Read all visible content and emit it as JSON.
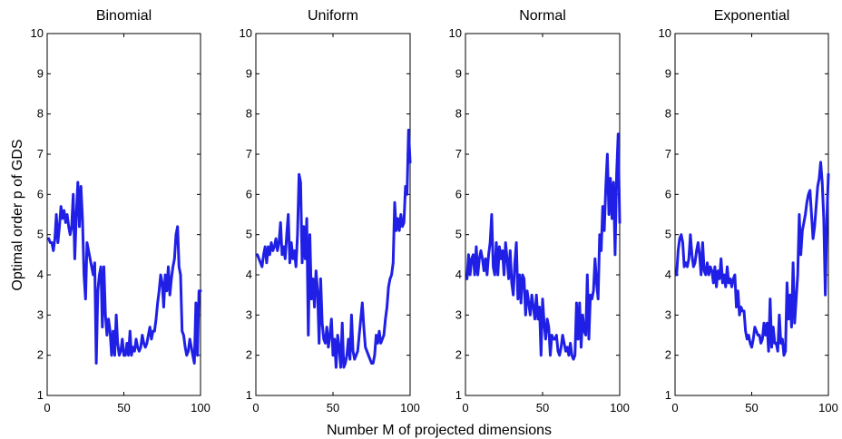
{
  "chart_data": {
    "type": "line",
    "xlabel": "Number M of projected dimensions",
    "ylabel": "Optimal order p of GDS",
    "xlim": [
      0,
      100
    ],
    "ylim": [
      1,
      10
    ],
    "x_ticks": [
      0,
      50,
      100
    ],
    "y_ticks": [
      1,
      2,
      3,
      4,
      5,
      6,
      7,
      8,
      9,
      10
    ],
    "line_color": "#1f1fe6",
    "grid": false,
    "panels": [
      {
        "title": "Binomial",
        "x": [
          1,
          2,
          3,
          4,
          5,
          6,
          7,
          8,
          9,
          10,
          11,
          12,
          13,
          14,
          15,
          16,
          17,
          18,
          19,
          20,
          21,
          22,
          23,
          24,
          25,
          26,
          27,
          28,
          29,
          30,
          31,
          32,
          33,
          34,
          35,
          36,
          37,
          38,
          39,
          40,
          41,
          42,
          43,
          44,
          45,
          46,
          47,
          48,
          49,
          50,
          51,
          52,
          53,
          54,
          55,
          56,
          57,
          58,
          59,
          60,
          61,
          62,
          63,
          64,
          65,
          66,
          67,
          68,
          69,
          70,
          71,
          72,
          73,
          74,
          75,
          76,
          77,
          78,
          79,
          80,
          81,
          82,
          83,
          84,
          85,
          86,
          87,
          88,
          89,
          90,
          91,
          92,
          93,
          94,
          95,
          96,
          97,
          98,
          99,
          100
        ],
        "values": [
          4.9,
          4.8,
          4.8,
          4.6,
          4.9,
          5.5,
          4.8,
          5.2,
          5.7,
          5.4,
          5.6,
          5.3,
          5.5,
          5.2,
          5.0,
          5.2,
          6.0,
          4.4,
          5.5,
          6.3,
          5.2,
          6.2,
          5.4,
          4.0,
          3.4,
          4.8,
          4.6,
          4.4,
          4.2,
          4.0,
          4.3,
          1.8,
          3.6,
          4.0,
          4.2,
          2.7,
          4.2,
          3.0,
          2.5,
          2.9,
          2.6,
          2.0,
          2.6,
          2.0,
          3.0,
          2.3,
          2.0,
          2.1,
          2.4,
          2.0,
          2.0,
          2.3,
          2.0,
          2.6,
          2.0,
          2.2,
          2.1,
          2.4,
          2.2,
          2.1,
          2.2,
          2.5,
          2.3,
          2.2,
          2.3,
          2.5,
          2.7,
          2.4,
          2.6,
          2.6,
          2.9,
          3.3,
          3.6,
          4.0,
          3.8,
          3.2,
          4.0,
          3.6,
          4.2,
          3.5,
          3.9,
          4.2,
          4.4,
          5.0,
          5.2,
          4.2,
          4.0,
          2.6,
          2.5,
          2.2,
          2.0,
          2.1,
          2.4,
          2.2,
          2.0,
          1.8,
          3.3,
          2.0,
          3.6,
          3.6
        ]
      },
      {
        "title": "Uniform",
        "x": [
          1,
          2,
          3,
          4,
          5,
          6,
          7,
          8,
          9,
          10,
          11,
          12,
          13,
          14,
          15,
          16,
          17,
          18,
          19,
          20,
          21,
          22,
          23,
          24,
          25,
          26,
          27,
          28,
          29,
          30,
          31,
          32,
          33,
          34,
          35,
          36,
          37,
          38,
          39,
          40,
          41,
          42,
          43,
          44,
          45,
          46,
          47,
          48,
          49,
          50,
          51,
          52,
          53,
          54,
          55,
          56,
          57,
          58,
          59,
          60,
          61,
          62,
          63,
          64,
          65,
          66,
          67,
          68,
          69,
          70,
          71,
          72,
          73,
          74,
          75,
          76,
          77,
          78,
          79,
          80,
          81,
          82,
          83,
          84,
          85,
          86,
          87,
          88,
          89,
          90,
          91,
          92,
          93,
          94,
          95,
          96,
          97,
          98,
          99,
          100
        ],
        "values": [
          4.5,
          4.4,
          4.3,
          4.2,
          4.5,
          4.7,
          4.3,
          4.7,
          4.5,
          4.8,
          4.6,
          4.7,
          4.9,
          4.6,
          4.8,
          5.3,
          4.5,
          4.7,
          4.4,
          5.0,
          5.5,
          4.3,
          4.8,
          4.4,
          4.6,
          4.2,
          5.0,
          6.5,
          6.3,
          4.3,
          5.2,
          4.4,
          5.4,
          2.5,
          5.0,
          3.4,
          3.9,
          3.2,
          4.1,
          3.6,
          2.3,
          3.9,
          2.8,
          2.4,
          2.3,
          2.7,
          2.2,
          2.5,
          2.9,
          2.0,
          2.4,
          1.7,
          2.5,
          2.2,
          1.7,
          2.8,
          1.7,
          1.8,
          2.0,
          2.4,
          1.9,
          3.0,
          2.1,
          1.9,
          2.0,
          2.1,
          2.5,
          2.9,
          3.3,
          2.7,
          2.2,
          2.1,
          2.0,
          1.9,
          1.8,
          1.8,
          2.0,
          2.5,
          2.3,
          2.6,
          2.3,
          2.4,
          2.5,
          2.9,
          3.2,
          3.7,
          3.9,
          4.0,
          4.3,
          5.8,
          5.1,
          5.4,
          5.1,
          5.5,
          5.2,
          5.3,
          6.2,
          6.0,
          7.6,
          6.8
        ]
      },
      {
        "title": "Normal",
        "x": [
          1,
          2,
          3,
          4,
          5,
          6,
          7,
          8,
          9,
          10,
          11,
          12,
          13,
          14,
          15,
          16,
          17,
          18,
          19,
          20,
          21,
          22,
          23,
          24,
          25,
          26,
          27,
          28,
          29,
          30,
          31,
          32,
          33,
          34,
          35,
          36,
          37,
          38,
          39,
          40,
          41,
          42,
          43,
          44,
          45,
          46,
          47,
          48,
          49,
          50,
          51,
          52,
          53,
          54,
          55,
          56,
          57,
          58,
          59,
          60,
          61,
          62,
          63,
          64,
          65,
          66,
          67,
          68,
          69,
          70,
          71,
          72,
          73,
          74,
          75,
          76,
          77,
          78,
          79,
          80,
          81,
          82,
          83,
          84,
          85,
          86,
          87,
          88,
          89,
          90,
          91,
          92,
          93,
          94,
          95,
          96,
          97,
          98,
          99,
          100
        ],
        "values": [
          3.9,
          4.5,
          4.0,
          4.4,
          4.5,
          4.0,
          4.7,
          4.0,
          4.4,
          4.6,
          4.4,
          4.1,
          4.4,
          4.0,
          4.5,
          4.8,
          5.5,
          4.2,
          4.0,
          4.8,
          4.0,
          4.7,
          4.4,
          4.6,
          4.0,
          4.8,
          4.4,
          3.9,
          4.6,
          3.8,
          3.5,
          4.3,
          4.8,
          3.4,
          4.0,
          3.3,
          4.0,
          3.9,
          3.0,
          3.6,
          3.3,
          3.0,
          3.5,
          3.2,
          2.9,
          3.5,
          2.9,
          3.2,
          2.0,
          3.4,
          2.8,
          2.4,
          2.9,
          2.7,
          2.0,
          2.5,
          2.4,
          2.4,
          2.5,
          2.1,
          2.0,
          2.2,
          2.5,
          2.3,
          2.1,
          2.2,
          2.0,
          2.3,
          2.0,
          1.9,
          2.0,
          3.3,
          2.4,
          3.3,
          2.2,
          3.0,
          2.6,
          2.5,
          4.0,
          2.4,
          3.5,
          3.4,
          3.6,
          4.4,
          3.8,
          3.4,
          5.0,
          4.6,
          5.7,
          5.1,
          6.2,
          7.0,
          5.5,
          6.4,
          5.4,
          6.3,
          4.5,
          6.5,
          7.5,
          5.3
        ]
      },
      {
        "title": "Exponential",
        "x": [
          1,
          2,
          3,
          4,
          5,
          6,
          7,
          8,
          9,
          10,
          11,
          12,
          13,
          14,
          15,
          16,
          17,
          18,
          19,
          20,
          21,
          22,
          23,
          24,
          25,
          26,
          27,
          28,
          29,
          30,
          31,
          32,
          33,
          34,
          35,
          36,
          37,
          38,
          39,
          40,
          41,
          42,
          43,
          44,
          45,
          46,
          47,
          48,
          49,
          50,
          51,
          52,
          53,
          54,
          55,
          56,
          57,
          58,
          59,
          60,
          61,
          62,
          63,
          64,
          65,
          66,
          67,
          68,
          69,
          70,
          71,
          72,
          73,
          74,
          75,
          76,
          77,
          78,
          79,
          80,
          81,
          82,
          83,
          84,
          85,
          86,
          87,
          88,
          89,
          90,
          91,
          92,
          93,
          94,
          95,
          96,
          97,
          98,
          99,
          100
        ],
        "values": [
          4.0,
          4.6,
          4.9,
          5.0,
          4.8,
          4.2,
          4.3,
          4.2,
          4.4,
          5.0,
          4.5,
          4.2,
          4.3,
          4.6,
          4.8,
          4.5,
          4.0,
          4.8,
          4.1,
          4.0,
          4.3,
          4.0,
          4.2,
          4.1,
          3.8,
          4.2,
          3.7,
          4.1,
          3.9,
          4.4,
          3.8,
          4.0,
          3.7,
          4.2,
          3.8,
          3.9,
          3.7,
          3.9,
          4.0,
          3.2,
          3.6,
          3.0,
          3.2,
          3.1,
          3.1,
          2.6,
          2.4,
          2.5,
          2.3,
          2.2,
          2.4,
          2.7,
          2.6,
          2.5,
          2.5,
          2.3,
          2.4,
          2.8,
          2.5,
          2.8,
          2.1,
          3.4,
          2.2,
          2.7,
          2.3,
          2.3,
          2.1,
          3.0,
          2.3,
          2.4,
          2.0,
          2.1,
          3.8,
          2.9,
          3.5,
          2.7,
          4.3,
          2.8,
          3.4,
          4.0,
          5.5,
          4.5,
          5.1,
          5.3,
          5.5,
          5.8,
          6.0,
          6.1,
          5.5,
          4.9,
          5.2,
          5.7,
          6.2,
          6.4,
          6.8,
          6.3,
          5.4,
          3.5,
          5.4,
          6.5
        ]
      }
    ]
  }
}
